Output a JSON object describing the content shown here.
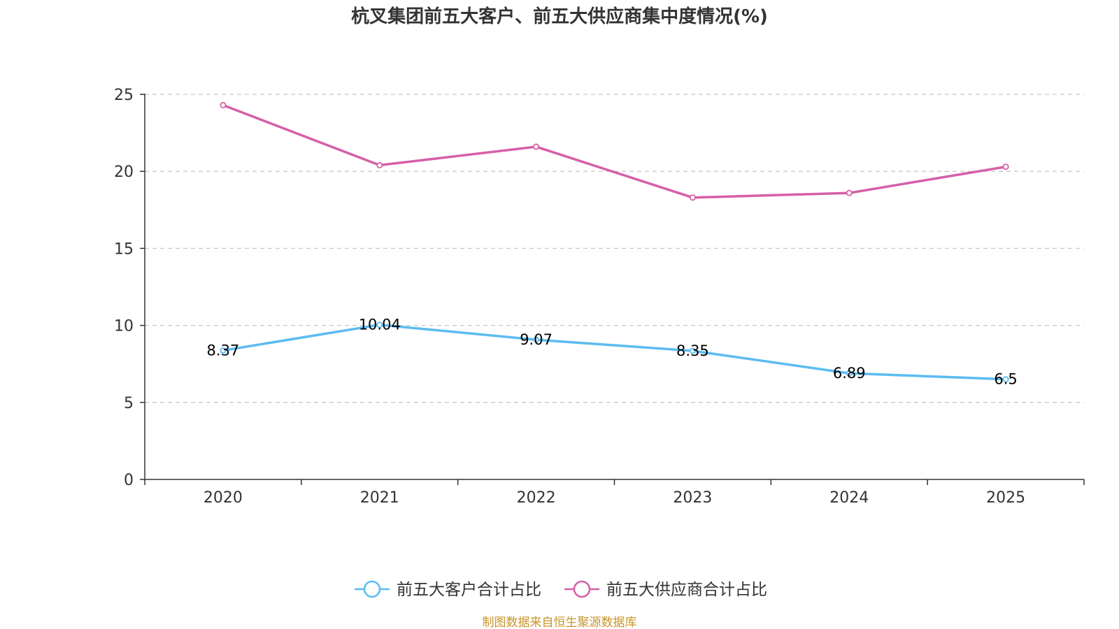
{
  "chart_data": {
    "type": "line",
    "title": "杭叉集团前五大客户、前五大供应商集中度情况(%)",
    "categories": [
      "2020",
      "2021",
      "2022",
      "2023",
      "2024",
      "2025"
    ],
    "series": [
      {
        "name": "前五大客户合计占比",
        "color": "#5bbcf0",
        "values": [
          8.37,
          10.04,
          9.07,
          8.35,
          6.89,
          6.5
        ],
        "labels": [
          "8.37",
          "10.04",
          "9.07",
          "8.35",
          "6.89",
          "6.5"
        ],
        "show_labels": true
      },
      {
        "name": "前五大供应商合计占比",
        "color": "#d65fa8",
        "values": [
          24.3,
          20.4,
          21.6,
          18.3,
          18.6,
          20.3
        ],
        "show_labels": false
      }
    ],
    "yticks": [
      0,
      5,
      10,
      15,
      20,
      25
    ],
    "ylim": [
      0,
      25
    ],
    "grid": true,
    "legend_position": "bottom-center",
    "xlabel": "",
    "ylabel": ""
  },
  "source": {
    "text": "制图数据来自恒生聚源数据库",
    "color": "#c8952c"
  }
}
